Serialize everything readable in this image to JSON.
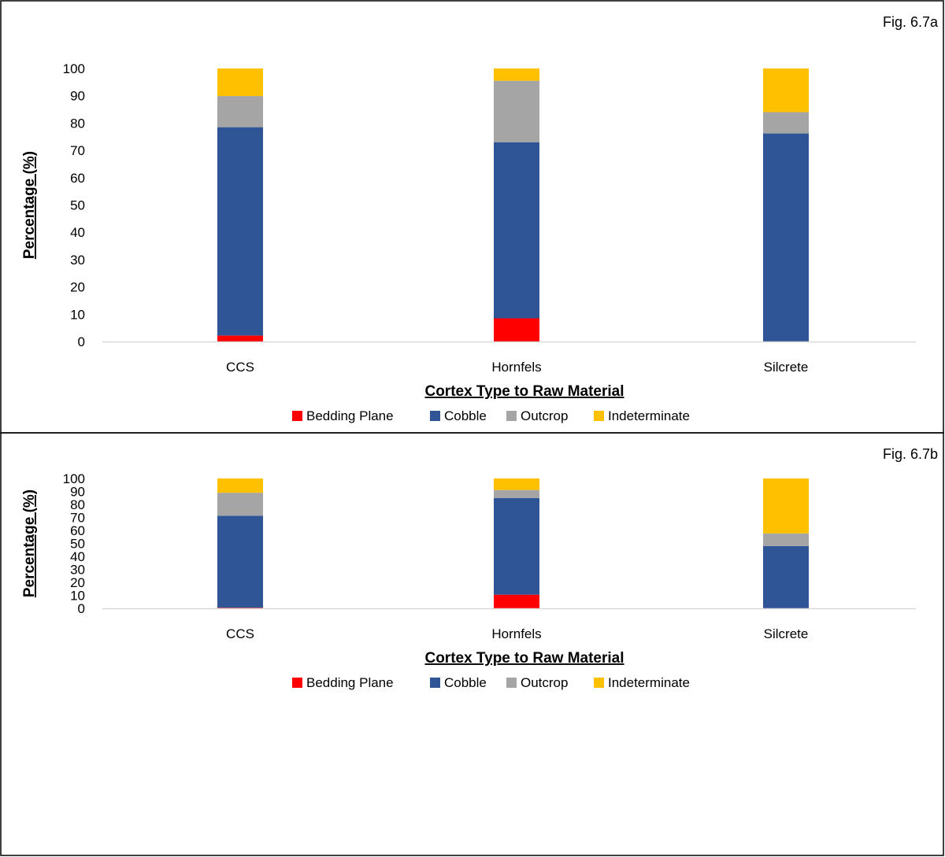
{
  "colors": {
    "Bedding Plane": "#ff0000",
    "Cobble": "#2f5597",
    "Outcrop": "#a5a5a5",
    "Indeterminate": "#ffc000",
    "axis": "#d9d9d9",
    "border": "#000000"
  },
  "chart_data": [
    {
      "type": "bar",
      "stacked": true,
      "label": "Fig. 6.7a",
      "categories": [
        "CCS",
        "Hornfels",
        "Silcrete"
      ],
      "series": [
        {
          "name": "Bedding Plane",
          "values": [
            2.2,
            8.5,
            0
          ]
        },
        {
          "name": "Cobble",
          "values": [
            76.3,
            64.5,
            76.2
          ]
        },
        {
          "name": "Outcrop",
          "values": [
            11.4,
            22.5,
            7.8
          ]
        },
        {
          "name": "Indeterminate",
          "values": [
            10.1,
            4.5,
            16.0
          ]
        }
      ],
      "xlabel": "Cortex Type to Raw Material",
      "ylabel": "Percentage (%)",
      "yticks": [
        "0",
        "10",
        "20",
        "30",
        "40",
        "50",
        "60",
        "70",
        "80",
        "90",
        "100"
      ],
      "ylim": [
        0,
        100
      ],
      "grid": false,
      "legend": "bottom"
    },
    {
      "type": "bar",
      "stacked": true,
      "label": "Fig. 6.7b",
      "categories": [
        "CCS",
        "Hornfels",
        "Silcrete"
      ],
      "series": [
        {
          "name": "Bedding Plane",
          "values": [
            0.5,
            10.5,
            0
          ]
        },
        {
          "name": "Cobble",
          "values": [
            70.8,
            74.5,
            48.0
          ]
        },
        {
          "name": "Outcrop",
          "values": [
            17.7,
            6.1,
            9.7
          ]
        },
        {
          "name": "Indeterminate",
          "values": [
            11.0,
            8.9,
            42.3
          ]
        }
      ],
      "xlabel": "Cortex Type to Raw Material",
      "ylabel": "Percentage (%)",
      "yticks": [
        "0",
        "10",
        "20",
        "30",
        "40",
        "50",
        "60",
        "70",
        "80",
        "90",
        "100"
      ],
      "ylim": [
        0,
        100
      ],
      "grid": false,
      "legend": "bottom"
    }
  ]
}
